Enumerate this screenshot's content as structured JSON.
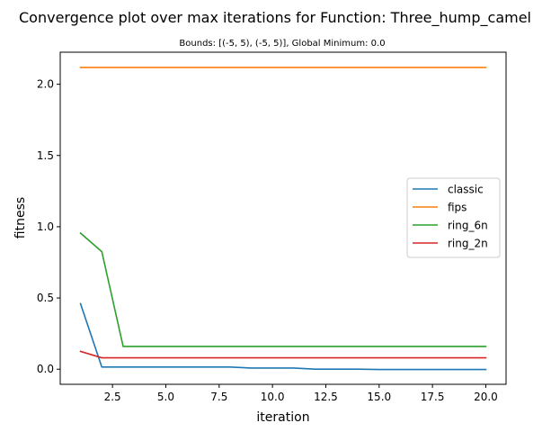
{
  "chart_data": {
    "type": "line",
    "title": "Convergence plot over max iterations for Function: Three_hump_camel",
    "subtitle": "Bounds: [(-5, 5), (-5, 5)], Global Minimum: 0.0",
    "xlabel": "iteration",
    "ylabel": "fitness",
    "xlim": [
      0.05,
      20.95
    ],
    "ylim": [
      -0.106,
      2.225
    ],
    "xticks": [
      2.5,
      5.0,
      7.5,
      10.0,
      12.5,
      15.0,
      17.5,
      20.0
    ],
    "xtick_labels": [
      "2.5",
      "5.0",
      "7.5",
      "10.0",
      "12.5",
      "15.0",
      "17.5",
      "20.0"
    ],
    "yticks": [
      0.0,
      0.5,
      1.0,
      1.5,
      2.0
    ],
    "ytick_labels": [
      "0.0",
      "0.5",
      "1.0",
      "1.5",
      "2.0"
    ],
    "grid": false,
    "legend_position": "center-right",
    "x": [
      1,
      2,
      3,
      4,
      5,
      6,
      7,
      8,
      9,
      10,
      11,
      12,
      13,
      14,
      15,
      16,
      17,
      18,
      19,
      20
    ],
    "series": [
      {
        "name": "classic",
        "color": "#1f77b4",
        "values": [
          0.46,
          0.015,
          0.015,
          0.015,
          0.015,
          0.015,
          0.015,
          0.015,
          0.008,
          0.008,
          0.008,
          0.0,
          0.0,
          0.0,
          -0.002,
          -0.002,
          -0.002,
          -0.002,
          -0.002,
          -0.002
        ]
      },
      {
        "name": "fips",
        "color": "#ff7f0e",
        "values": [
          2.118,
          2.118,
          2.118,
          2.118,
          2.118,
          2.118,
          2.118,
          2.118,
          2.118,
          2.118,
          2.118,
          2.118,
          2.118,
          2.118,
          2.118,
          2.118,
          2.118,
          2.118,
          2.118,
          2.118
        ]
      },
      {
        "name": "ring_6n",
        "color": "#2ca02c",
        "values": [
          0.955,
          0.825,
          0.16,
          0.16,
          0.16,
          0.16,
          0.16,
          0.16,
          0.16,
          0.16,
          0.16,
          0.16,
          0.16,
          0.16,
          0.16,
          0.16,
          0.16,
          0.16,
          0.16,
          0.16
        ]
      },
      {
        "name": "ring_2n",
        "color": "#d62728",
        "values": [
          0.125,
          0.08,
          0.08,
          0.08,
          0.08,
          0.08,
          0.08,
          0.08,
          0.08,
          0.08,
          0.08,
          0.08,
          0.08,
          0.08,
          0.08,
          0.08,
          0.08,
          0.08,
          0.08,
          0.08
        ]
      }
    ]
  }
}
